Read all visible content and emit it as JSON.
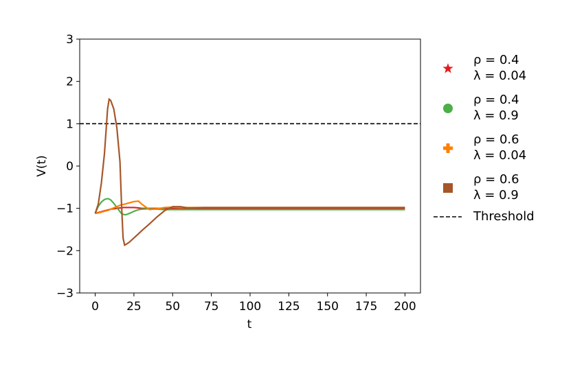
{
  "chart_data": {
    "type": "line",
    "xlabel": "t",
    "ylabel": "V(t)",
    "xlim": [
      -10,
      210
    ],
    "ylim": [
      -3,
      3
    ],
    "xticks": [
      0,
      25,
      50,
      75,
      100,
      125,
      150,
      175,
      200
    ],
    "yticks": [
      {
        "value": -3,
        "label": "−3"
      },
      {
        "value": -2,
        "label": "−2"
      },
      {
        "value": -1,
        "label": "−1"
      },
      0,
      1,
      2,
      3
    ],
    "x": [
      0,
      2,
      4,
      6,
      8,
      9,
      10,
      12,
      14,
      16,
      17,
      18,
      19,
      20,
      22,
      25,
      28,
      30,
      35,
      40,
      45,
      50,
      55,
      60,
      70,
      80,
      100,
      125,
      150,
      175,
      200
    ],
    "series": [
      {
        "name": "ρ = 0.4\nλ = 0.04",
        "color": "#e41a1c",
        "marker": "star",
        "values": [
          -1.12,
          -1.1,
          -1.08,
          -1.06,
          -1.04,
          -1.03,
          -1.02,
          -1.01,
          -1.0,
          -0.99,
          -0.99,
          -0.98,
          -0.98,
          -0.98,
          -0.98,
          -0.98,
          -0.99,
          -1.0,
          -1.0,
          -1.0,
          -1.0,
          -1.0,
          -1.0,
          -1.0,
          -1.0,
          -1.0,
          -1.0,
          -1.0,
          -1.0,
          -1.0,
          -1.0
        ]
      },
      {
        "name": "ρ = 0.4\nλ = 0.9",
        "color": "#4daf4a",
        "marker": "circle",
        "values": [
          -1.12,
          -0.95,
          -0.85,
          -0.79,
          -0.77,
          -0.78,
          -0.8,
          -0.88,
          -0.98,
          -1.08,
          -1.12,
          -1.14,
          -1.15,
          -1.15,
          -1.12,
          -1.07,
          -1.03,
          -1.02,
          -1.01,
          -1.02,
          -1.03,
          -1.03,
          -1.03,
          -1.03,
          -1.03,
          -1.03,
          -1.03,
          -1.03,
          -1.03,
          -1.03,
          -1.03
        ]
      },
      {
        "name": "ρ = 0.6\nλ = 0.04",
        "color": "#ff7f00",
        "marker": "plus",
        "values": [
          -1.12,
          -1.11,
          -1.09,
          -1.07,
          -1.05,
          -1.04,
          -1.02,
          -0.99,
          -0.96,
          -0.93,
          -0.92,
          -0.91,
          -0.9,
          -0.89,
          -0.87,
          -0.84,
          -0.83,
          -0.9,
          -1.03,
          -1.01,
          -0.98,
          -0.97,
          -0.98,
          -0.98,
          -0.98,
          -0.98,
          -0.98,
          -0.98,
          -0.98,
          -0.98,
          -0.98
        ]
      },
      {
        "name": "ρ = 0.6\nλ = 0.9",
        "color": "#a65628",
        "marker": "square",
        "values": [
          -1.12,
          -0.9,
          -0.4,
          0.3,
          1.35,
          1.58,
          1.55,
          1.35,
          0.9,
          0.1,
          -0.9,
          -1.7,
          -1.87,
          -1.85,
          -1.8,
          -1.7,
          -1.6,
          -1.53,
          -1.37,
          -1.2,
          -1.05,
          -0.96,
          -0.96,
          -0.99,
          -0.98,
          -0.98,
          -0.98,
          -0.98,
          -0.98,
          -0.98,
          -0.98
        ]
      }
    ],
    "threshold": {
      "name": "Threshold",
      "value": 1,
      "color": "#000000"
    }
  }
}
